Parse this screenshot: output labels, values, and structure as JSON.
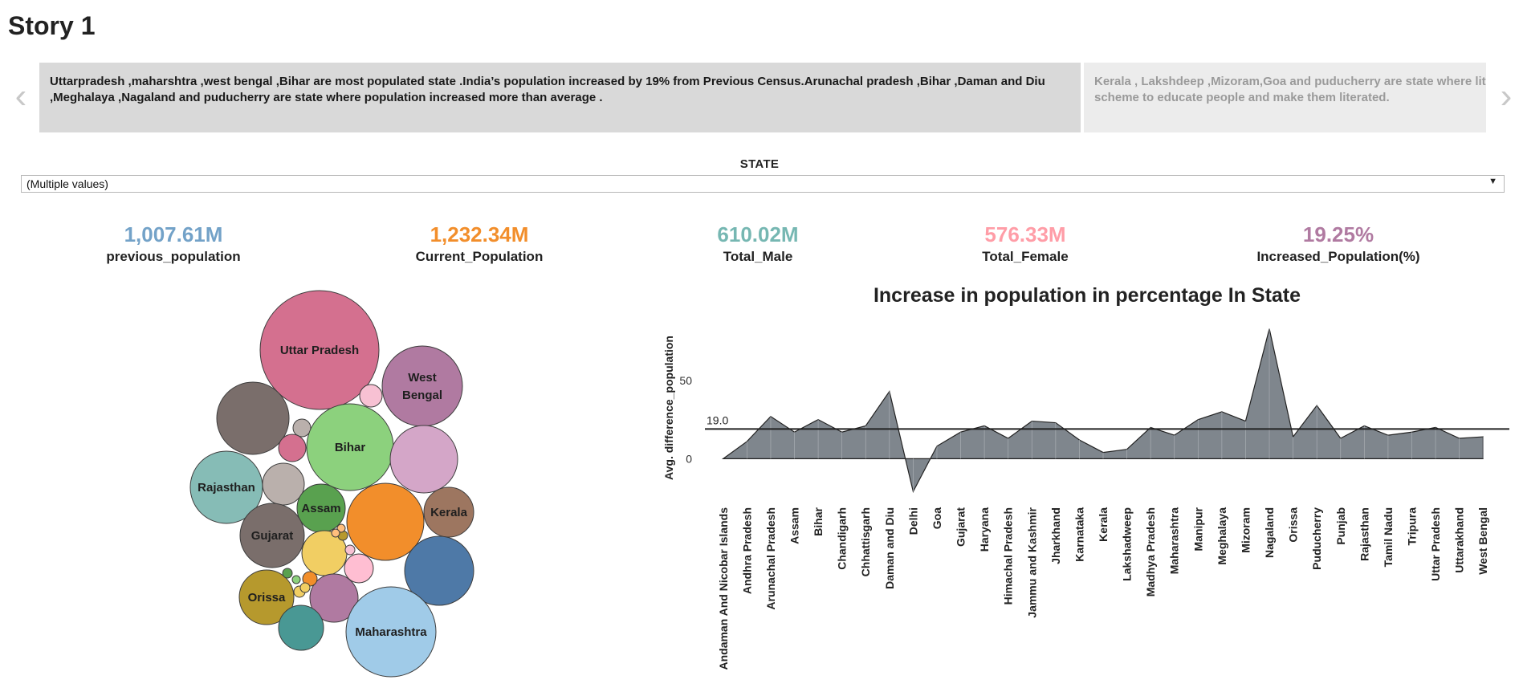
{
  "story_title": "Story 1",
  "nav": {
    "prev": "‹",
    "next": "›"
  },
  "story_points": [
    "Uttarpradesh ,maharshtra ,west bengal ,Bihar are most populated state .India’s population increased by 19% from Previous Census.Arunachal pradesh ,Bihar ,Daman and Diu ,Meghalaya ,Nagaland and puducherry are state where population increased more than average .",
    "Kerala , Lakshdeep ,Mizoram,Goa and puducherry are state where liter",
    "scheme to educate people and make them literated."
  ],
  "filter": {
    "label": "STATE",
    "value": "(Multiple values)"
  },
  "kpis": [
    {
      "value": "1,007.61M",
      "label": "previous_population",
      "color": "#73a2c8"
    },
    {
      "value": "1,232.34M",
      "label": "Current_Population",
      "color": "#f28e2b"
    },
    {
      "value": "610.02M",
      "label": "Total_Male",
      "color": "#76b7b2"
    },
    {
      "value": "576.33M",
      "label": "Total_Female",
      "color": "#ff9da7"
    },
    {
      "value": "19.25%",
      "label": "Increased_Population(%)",
      "color": "#b07aa1"
    }
  ],
  "bubbles": [
    {
      "label": "Uttar Pradesh",
      "color": "#d4708f"
    },
    {
      "label": "West Bengal",
      "color": "#b07aa1"
    },
    {
      "label": "",
      "color": "#7a6e6b"
    },
    {
      "label": "",
      "color": "#f7c1d3"
    },
    {
      "label": "",
      "color": "#bab0ac"
    },
    {
      "label": "",
      "color": "#d4708f"
    },
    {
      "label": "Bihar",
      "color": "#8cd17d"
    },
    {
      "label": "",
      "color": "#d4a6c8"
    },
    {
      "label": "Rajasthan",
      "color": "#86bcb6"
    },
    {
      "label": "",
      "color": "#bab0ac"
    },
    {
      "label": "Assam",
      "color": "#59a14f"
    },
    {
      "label": "",
      "color": "#f28e2b"
    },
    {
      "label": "Kerala",
      "color": "#9d7660"
    },
    {
      "label": "Gujarat",
      "color": "#7a6e6b"
    },
    {
      "label": "",
      "color": "#f1ce63"
    },
    {
      "label": "",
      "color": "#4e79a7"
    },
    {
      "label": "",
      "color": "#ffbed2"
    },
    {
      "label": "Orissa",
      "color": "#b6992d"
    },
    {
      "label": "",
      "color": "#b07aa1"
    },
    {
      "label": "",
      "color": "#499894"
    },
    {
      "label": "Maharashtra",
      "color": "#a0cbe8"
    },
    {
      "label": "",
      "color": "#f28e2b"
    },
    {
      "label": "",
      "color": "#f1ce63"
    },
    {
      "label": "",
      "color": "#59a14f"
    },
    {
      "label": "",
      "color": "#8cd17d"
    },
    {
      "label": "",
      "color": "#b6992d"
    },
    {
      "label": "",
      "color": "#f7c1d3"
    },
    {
      "label": "",
      "color": "#ffbe7d"
    },
    {
      "label": "",
      "color": "#ffbe7d"
    },
    {
      "label": "",
      "color": "#f1ce63"
    }
  ],
  "chart_data": {
    "type": "area",
    "title": "Increase in population in percentage In State",
    "ylabel": "Avg. difference_population",
    "xlabel": "",
    "yticks": [
      0,
      50
    ],
    "ylim": [
      -28,
      93
    ],
    "reference_line": {
      "value": 19.0,
      "label": "19.0"
    },
    "fill_color": "#7f868d",
    "grid": false,
    "categories": [
      "Andaman And Nicobar Islands",
      "Andhra Pradesh",
      "Arunachal Pradesh",
      "Assam",
      "Bihar",
      "Chandigarh",
      "Chhattisgarh",
      "Daman and Diu",
      "Delhi",
      "Goa",
      "Gujarat",
      "Haryana",
      "Himachal Pradesh",
      "Jammu and Kashmir",
      "Jharkhand",
      "Karnataka",
      "Kerala",
      "Lakshadweep",
      "Madhya Pradesh",
      "Maharashtra",
      "Manipur",
      "Meghalaya",
      "Mizoram",
      "Nagaland",
      "Orissa",
      "Puducherry",
      "Punjab",
      "Rajasthan",
      "Tamil Nadu",
      "Tripura",
      "Uttar Pradesh",
      "Uttarakhand",
      "West Bengal"
    ],
    "values": [
      0,
      11,
      27,
      17,
      25,
      17,
      21,
      43,
      -21,
      8,
      17,
      21,
      13,
      24,
      23,
      12,
      4,
      6,
      20,
      15,
      25,
      30,
      24,
      83,
      14,
      34,
      13,
      21,
      15,
      17,
      20,
      13,
      14
    ]
  }
}
